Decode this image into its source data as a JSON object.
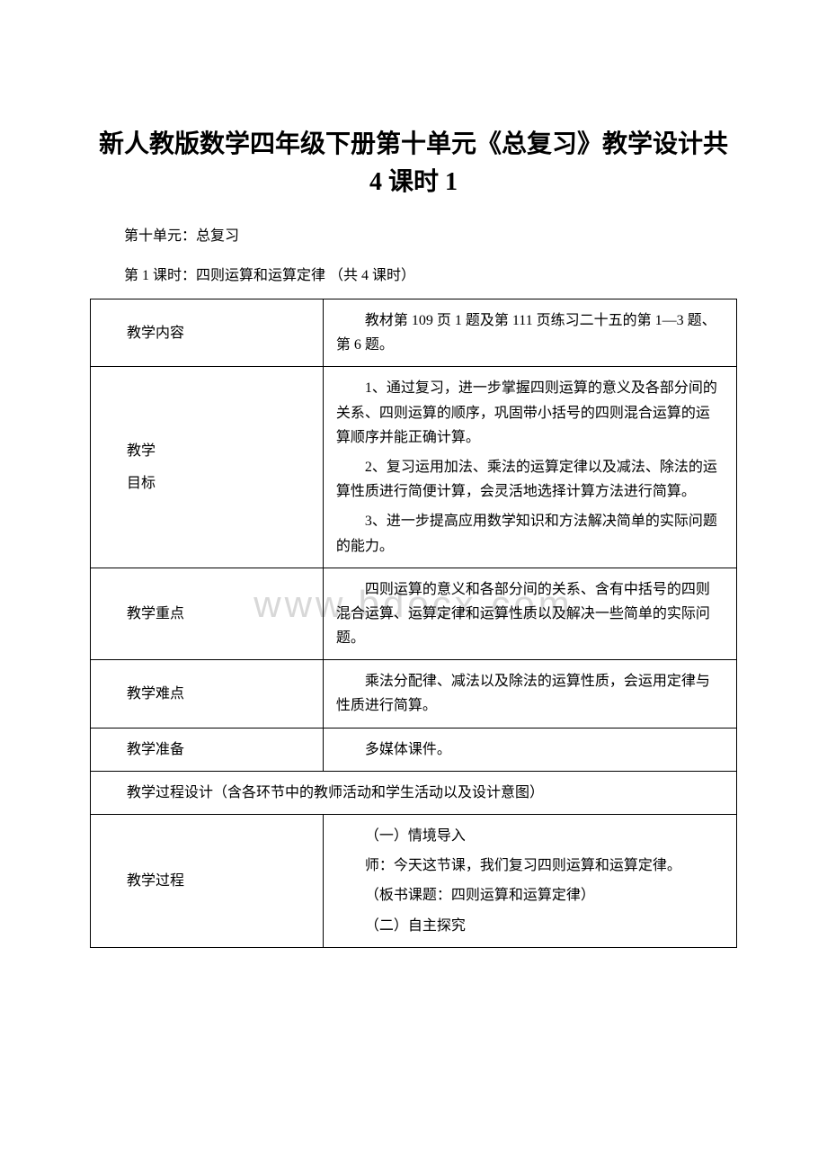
{
  "watermark_text": "www.bdocx.com",
  "title": "新人教版数学四年级下册第十单元《总复习》教学设计共 4 课时 1",
  "subtitle_1": "第十单元：总复习",
  "subtitle_2": "第 1 课时：四则运算和运算定律 （共 4 课时）",
  "table": {
    "rows": [
      {
        "label": "教学内容",
        "content": [
          "教材第 109 页 1 题及第 111 页练习二十五的第 1—3 题、第 6 题。"
        ]
      },
      {
        "label_lines": [
          "教学",
          "目标"
        ],
        "content": [
          "1、通过复习，进一步掌握四则运算的意义及各部分间的关系、四则运算的顺序，巩固带小括号的四则混合运算的运算顺序并能正确计算。",
          "2、复习运用加法、乘法的运算定律以及减法、除法的运算性质进行简便计算，会灵活地选择计算方法进行简算。",
          "3、进一步提高应用数学知识和方法解决简单的实际问题的能力。"
        ]
      },
      {
        "label": "教学重点",
        "content": [
          "四则运算的意义和各部分间的关系、含有中括号的四则混合运算、运算定律和运算性质以及解决一些简单的实际问题。"
        ]
      },
      {
        "label": "教学难点",
        "content": [
          "乘法分配律、减法以及除法的运算性质，会运用定律与性质进行简算。"
        ]
      },
      {
        "label": "教学准备",
        "content_centered": "多媒体课件。"
      }
    ],
    "merged_row": {
      "text": "教学过程设计（含各环节中的教师活动和学生活动以及设计意图）"
    },
    "final_row": {
      "label": "教学过程",
      "content": [
        "（一）情境导入",
        "师：今天这节课，我们复习四则运算和运算定律。",
        "（板书课题：四则运算和运算定律）",
        "（二）自主探究"
      ]
    }
  },
  "style": {
    "background_color": "#ffffff",
    "text_color": "#000000",
    "border_color": "#000000",
    "watermark_color": "#d8d8d8",
    "title_fontsize": 28,
    "body_fontsize": 16,
    "watermark_fontsize": 42
  }
}
